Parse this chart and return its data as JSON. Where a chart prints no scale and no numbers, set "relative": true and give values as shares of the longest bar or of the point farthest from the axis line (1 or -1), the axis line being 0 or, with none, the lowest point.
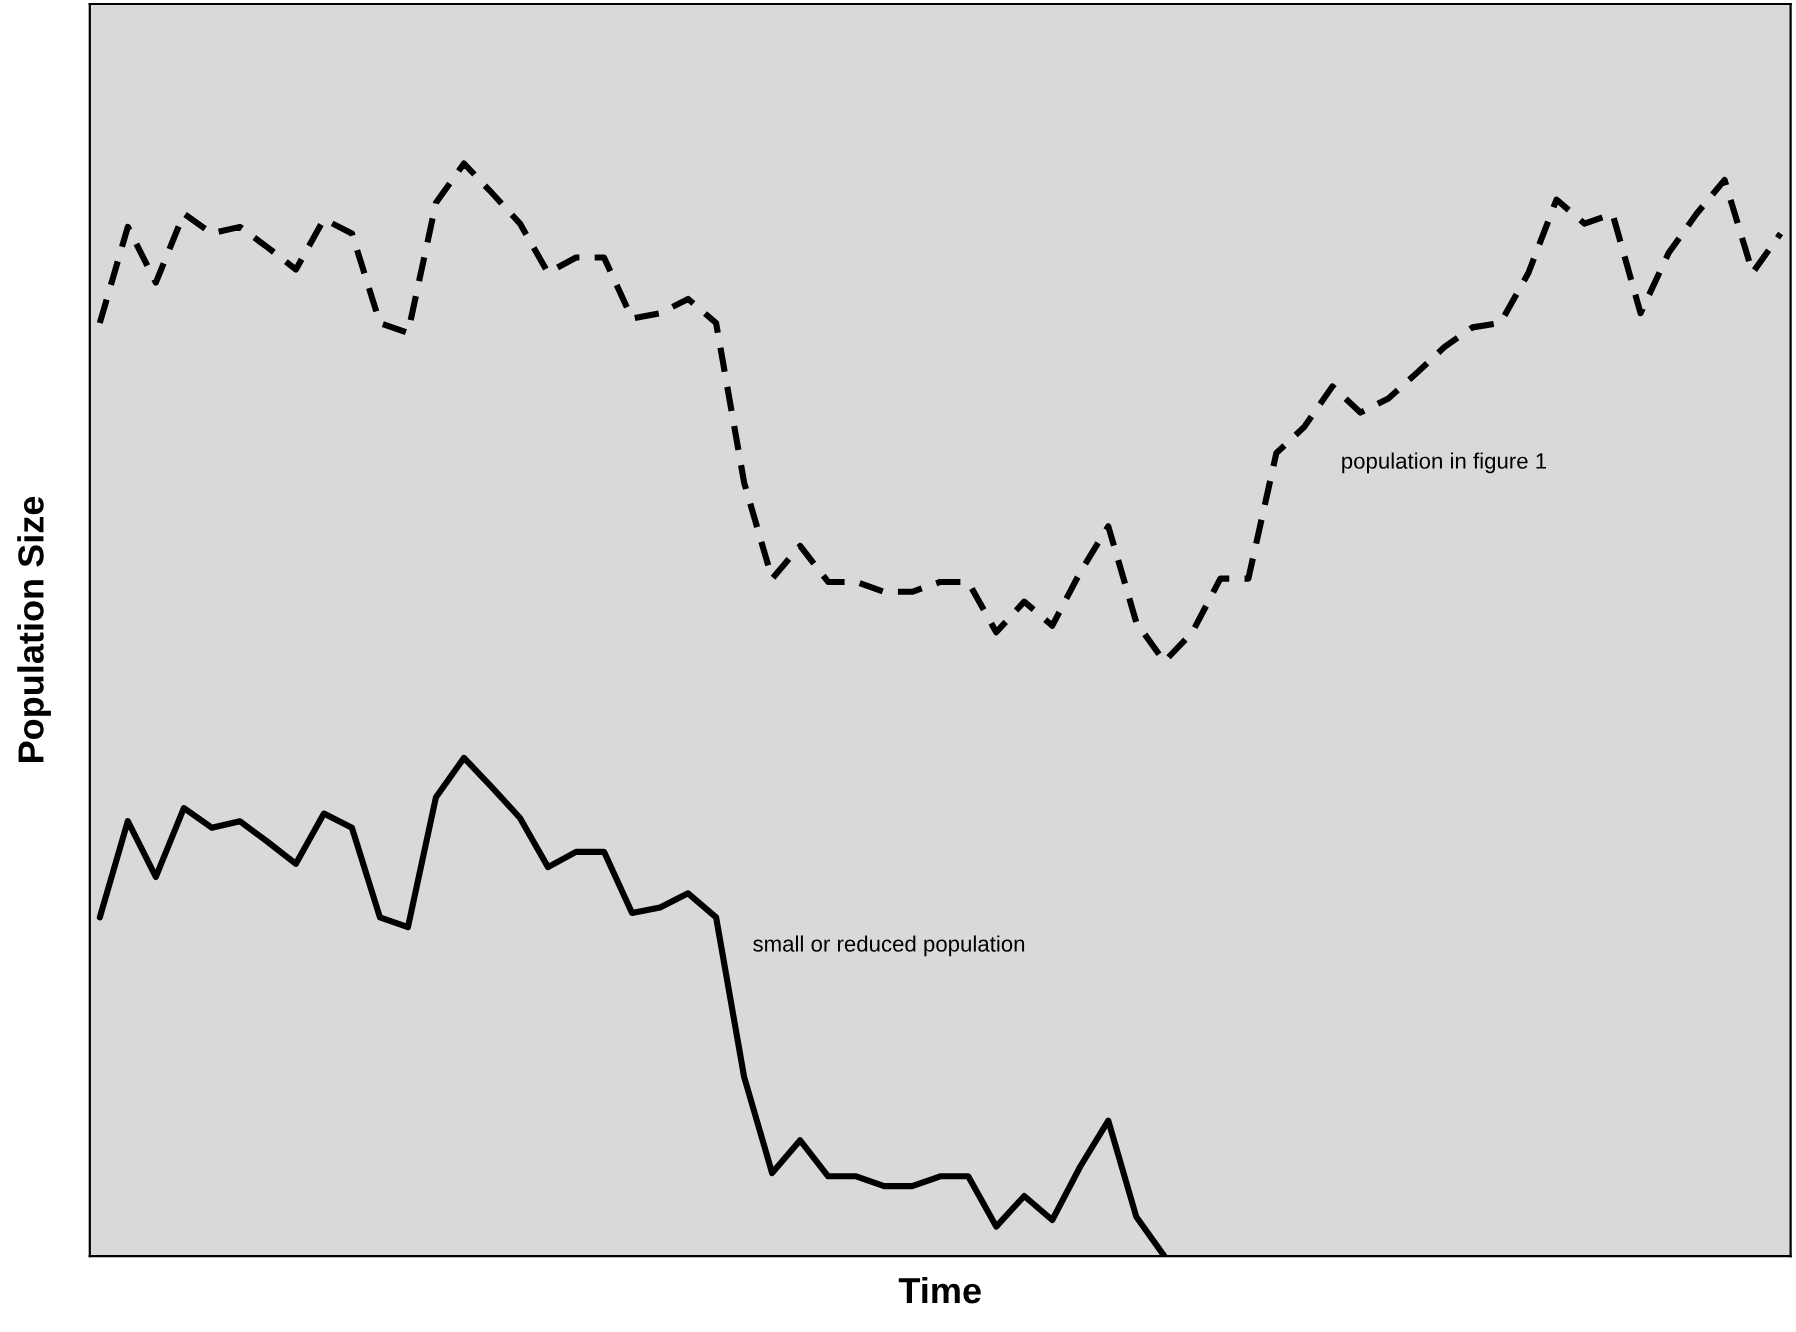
{
  "chart_data": {
    "type": "line",
    "relative": true,
    "xlabel": "Time",
    "ylabel": "Population Size",
    "categories": [
      null,
      null,
      null,
      null,
      null,
      null,
      null,
      null,
      null,
      null,
      null,
      null,
      null,
      null,
      null,
      null,
      null,
      null,
      null,
      null,
      null,
      null,
      null,
      null,
      null,
      null,
      null,
      null,
      null,
      null,
      null,
      null,
      null,
      null,
      null,
      null,
      null,
      null,
      null,
      null,
      null,
      null,
      null,
      null,
      null,
      null,
      null,
      null,
      null,
      null,
      null,
      null,
      null,
      null,
      null,
      null,
      null,
      null,
      null,
      null,
      null
    ],
    "series": [
      {
        "name": "population in figure 1",
        "color": "#000000",
        "line_style": "dashed",
        "values": [
          0.854,
          0.942,
          0.891,
          0.954,
          0.936,
          0.942,
          0.923,
          0.903,
          0.949,
          0.936,
          0.854,
          0.845,
          0.964,
          1.0,
          0.973,
          0.945,
          0.9,
          0.914,
          0.914,
          0.858,
          0.863,
          0.876,
          0.854,
          0.708,
          0.62,
          0.65,
          0.617,
          0.617,
          0.608,
          0.608,
          0.617,
          0.617,
          0.571,
          0.599,
          0.577,
          0.626,
          0.668,
          0.58,
          0.544,
          0.571,
          0.62,
          0.62,
          0.735,
          0.759,
          0.796,
          0.772,
          0.785,
          0.808,
          0.832,
          0.85,
          0.854,
          0.9,
          0.967,
          0.945,
          0.954,
          0.863,
          0.918,
          0.954,
          0.985,
          0.9,
          0.936
        ]
      },
      {
        "name": "small or reduced population",
        "color": "#000000",
        "line_style": "solid",
        "values": [
          0.31,
          0.398,
          0.347,
          0.41,
          0.392,
          0.398,
          0.379,
          0.359,
          0.405,
          0.392,
          0.31,
          0.301,
          0.42,
          0.456,
          0.429,
          0.401,
          0.356,
          0.37,
          0.37,
          0.314,
          0.319,
          0.332,
          0.31,
          0.164,
          0.076,
          0.106,
          0.073,
          0.073,
          0.064,
          0.064,
          0.073,
          0.073,
          0.027,
          0.055,
          0.033,
          0.082,
          0.124,
          0.036,
          0.0,
          null,
          null,
          null,
          null,
          null,
          null,
          null,
          null,
          null,
          null,
          null,
          null,
          null,
          null,
          null,
          null,
          null,
          null,
          null,
          null,
          null,
          null
        ]
      }
    ],
    "grid": false,
    "legend": false
  }
}
